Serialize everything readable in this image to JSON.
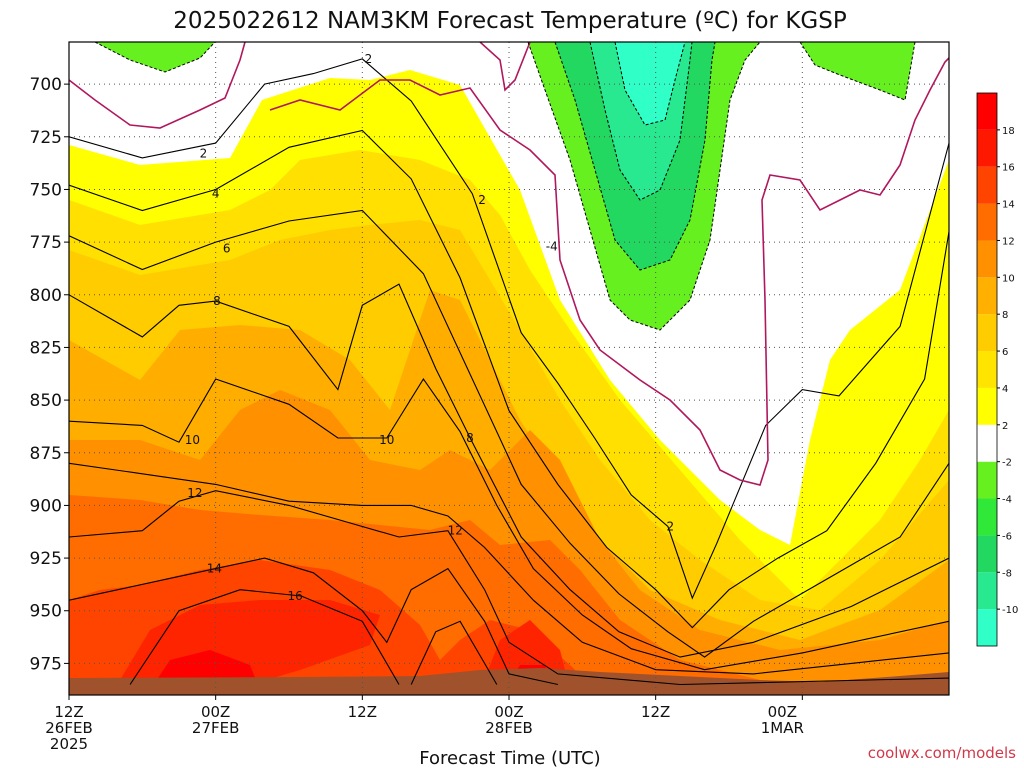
{
  "chart_data": {
    "type": "heatmap",
    "title": "2025022612 NAM3KM Forecast Temperature (ºC) for KGSP",
    "xlabel": "Forecast Time (UTC)",
    "ylabel": "",
    "credit": "coolwx.com/models",
    "x_hours": [
      0,
      72
    ],
    "x_ticks": [
      {
        "hour": 0,
        "lines": [
          "12Z",
          "26FEB",
          "2025"
        ]
      },
      {
        "hour": 12,
        "lines": [
          "00Z",
          "27FEB"
        ]
      },
      {
        "hour": 24,
        "lines": [
          "12Z"
        ]
      },
      {
        "hour": 36,
        "lines": [
          "00Z",
          "28FEB"
        ]
      },
      {
        "hour": 48,
        "lines": [
          "12Z"
        ]
      },
      {
        "hour": 60,
        "lines": [
          "00Z",
          "1MAR"
        ]
      }
    ],
    "y_ticks": [
      700,
      725,
      750,
      775,
      800,
      825,
      850,
      875,
      900,
      925,
      950,
      975
    ],
    "ylim": [
      680,
      990
    ],
    "grid": true,
    "colorbar": {
      "levels": [
        -10,
        -8,
        -6,
        -4,
        -2,
        2,
        4,
        6,
        8,
        10,
        12,
        14,
        16,
        18
      ],
      "labels": [
        "-10",
        "-8",
        "-6",
        "-4",
        "-2",
        "2",
        "4",
        "6",
        "8",
        "10",
        "12",
        "14",
        "16",
        "18"
      ],
      "colors": [
        "#30ffc8",
        "#28e890",
        "#22d860",
        "#30e838",
        "#66f020",
        "#ffffff",
        "#ffff00",
        "#ffe400",
        "#ffcc00",
        "#ffb000",
        "#ff9000",
        "#ff6c00",
        "#ff4400",
        "#ff1800",
        "#ff0000"
      ]
    },
    "contour_labels": [
      {
        "text": "2",
        "hour": 24.5,
        "p": 688
      },
      {
        "text": "2",
        "hour": 11,
        "p": 733
      },
      {
        "text": "2",
        "hour": 33.8,
        "p": 755
      },
      {
        "text": "2",
        "hour": 49.2,
        "p": 910
      },
      {
        "text": "4",
        "hour": 12,
        "p": 752
      },
      {
        "text": "6",
        "hour": 12.9,
        "p": 778
      },
      {
        "text": "8",
        "hour": 12.1,
        "p": 803
      },
      {
        "text": "8",
        "hour": 32.8,
        "p": 868
      },
      {
        "text": "10",
        "hour": 10.1,
        "p": 869
      },
      {
        "text": "10",
        "hour": 26,
        "p": 869
      },
      {
        "text": "12",
        "hour": 10.3,
        "p": 894
      },
      {
        "text": "12",
        "hour": 31.6,
        "p": 912
      },
      {
        "text": "14",
        "hour": 11.9,
        "p": 930
      },
      {
        "text": "16",
        "hour": 18.5,
        "p": 943
      },
      {
        "text": "-4",
        "hour": 39.5,
        "p": 777
      }
    ],
    "series": [
      {
        "values": [
          {
            "hour": 0,
            "p": 725
          },
          {
            "hour": 6,
            "p": 735
          },
          {
            "hour": 12,
            "p": 728
          },
          {
            "hour": 16,
            "p": 700
          },
          {
            "hour": 20,
            "p": 695
          },
          {
            "hour": 24,
            "p": 688
          },
          {
            "hour": 28,
            "p": 708
          },
          {
            "hour": 33,
            "p": 752
          },
          {
            "hour": 37,
            "p": 818
          },
          {
            "hour": 40,
            "p": 842
          },
          {
            "hour": 43,
            "p": 868
          },
          {
            "hour": 46,
            "p": 895
          },
          {
            "hour": 49,
            "p": 910
          },
          {
            "hour": 51,
            "p": 944
          },
          {
            "hour": 53,
            "p": 918
          },
          {
            "hour": 57,
            "p": 862
          },
          {
            "hour": 60,
            "p": 845
          },
          {
            "hour": 63,
            "p": 848
          },
          {
            "hour": 68,
            "p": 815
          },
          {
            "hour": 72,
            "p": 728
          }
        ]
      },
      {
        "values": [
          {
            "hour": 0,
            "p": 748
          },
          {
            "hour": 6,
            "p": 760
          },
          {
            "hour": 12,
            "p": 750
          },
          {
            "hour": 18,
            "p": 730
          },
          {
            "hour": 24,
            "p": 722
          },
          {
            "hour": 28,
            "p": 745
          },
          {
            "hour": 32,
            "p": 792
          },
          {
            "hour": 36,
            "p": 855
          },
          {
            "hour": 40,
            "p": 890
          },
          {
            "hour": 44,
            "p": 920
          },
          {
            "hour": 48,
            "p": 940
          },
          {
            "hour": 51,
            "p": 958
          },
          {
            "hour": 54,
            "p": 940
          },
          {
            "hour": 58,
            "p": 925
          },
          {
            "hour": 62,
            "p": 912
          },
          {
            "hour": 66,
            "p": 880
          },
          {
            "hour": 70,
            "p": 840
          },
          {
            "hour": 72,
            "p": 770
          }
        ]
      },
      {
        "values": [
          {
            "hour": 0,
            "p": 772
          },
          {
            "hour": 6,
            "p": 788
          },
          {
            "hour": 12,
            "p": 775
          },
          {
            "hour": 18,
            "p": 765
          },
          {
            "hour": 24,
            "p": 760
          },
          {
            "hour": 29,
            "p": 790
          },
          {
            "hour": 33,
            "p": 840
          },
          {
            "hour": 37,
            "p": 890
          },
          {
            "hour": 41,
            "p": 918
          },
          {
            "hour": 45,
            "p": 942
          },
          {
            "hour": 49,
            "p": 960
          },
          {
            "hour": 52,
            "p": 972
          },
          {
            "hour": 56,
            "p": 955
          },
          {
            "hour": 62,
            "p": 935
          },
          {
            "hour": 68,
            "p": 915
          },
          {
            "hour": 72,
            "p": 880
          }
        ]
      },
      {
        "values": [
          {
            "hour": 0,
            "p": 800
          },
          {
            "hour": 6,
            "p": 820
          },
          {
            "hour": 9,
            "p": 805
          },
          {
            "hour": 12,
            "p": 803
          },
          {
            "hour": 18,
            "p": 815
          },
          {
            "hour": 22,
            "p": 845
          },
          {
            "hour": 24,
            "p": 805
          },
          {
            "hour": 27,
            "p": 795
          },
          {
            "hour": 30,
            "p": 835
          },
          {
            "hour": 33,
            "p": 870
          },
          {
            "hour": 37,
            "p": 915
          },
          {
            "hour": 41,
            "p": 940
          },
          {
            "hour": 45,
            "p": 960
          },
          {
            "hour": 50,
            "p": 972
          },
          {
            "hour": 56,
            "p": 965
          },
          {
            "hour": 64,
            "p": 948
          },
          {
            "hour": 72,
            "p": 925
          }
        ]
      },
      {
        "values": [
          {
            "hour": 0,
            "p": 860
          },
          {
            "hour": 6,
            "p": 862
          },
          {
            "hour": 9,
            "p": 870
          },
          {
            "hour": 12,
            "p": 840
          },
          {
            "hour": 18,
            "p": 852
          },
          {
            "hour": 22,
            "p": 868
          },
          {
            "hour": 26,
            "p": 868
          },
          {
            "hour": 29,
            "p": 840
          },
          {
            "hour": 32,
            "p": 865
          },
          {
            "hour": 35,
            "p": 900
          },
          {
            "hour": 38,
            "p": 930
          },
          {
            "hour": 42,
            "p": 952
          },
          {
            "hour": 46,
            "p": 968
          },
          {
            "hour": 52,
            "p": 978
          },
          {
            "hour": 60,
            "p": 970
          },
          {
            "hour": 72,
            "p": 955
          }
        ]
      },
      {
        "values": [
          {
            "hour": 0,
            "p": 880
          },
          {
            "hour": 6,
            "p": 885
          },
          {
            "hour": 12,
            "p": 890
          },
          {
            "hour": 18,
            "p": 898
          },
          {
            "hour": 24,
            "p": 900
          },
          {
            "hour": 28,
            "p": 900
          },
          {
            "hour": 31,
            "p": 905
          },
          {
            "hour": 34,
            "p": 920
          },
          {
            "hour": 38,
            "p": 945
          },
          {
            "hour": 42,
            "p": 965
          },
          {
            "hour": 48,
            "p": 978
          },
          {
            "hour": 56,
            "p": 980
          },
          {
            "hour": 64,
            "p": 975
          },
          {
            "hour": 72,
            "p": 970
          }
        ]
      },
      {
        "values": [
          {
            "hour": 0,
            "p": 915
          },
          {
            "hour": 6,
            "p": 912
          },
          {
            "hour": 9,
            "p": 898
          },
          {
            "hour": 12,
            "p": 893
          },
          {
            "hour": 18,
            "p": 900
          },
          {
            "hour": 24,
            "p": 910
          },
          {
            "hour": 27,
            "p": 915
          },
          {
            "hour": 31,
            "p": 912
          },
          {
            "hour": 34,
            "p": 940
          },
          {
            "hour": 36,
            "p": 965
          },
          {
            "hour": 40,
            "p": 980
          },
          {
            "hour": 50,
            "p": 985
          },
          {
            "hour": 72,
            "p": 982
          }
        ]
      },
      {
        "values": [
          {
            "hour": 0,
            "p": 945
          },
          {
            "hour": 4,
            "p": 940
          },
          {
            "hour": 8,
            "p": 935
          },
          {
            "hour": 12,
            "p": 930
          },
          {
            "hour": 16,
            "p": 925
          },
          {
            "hour": 20,
            "p": 932
          },
          {
            "hour": 24,
            "p": 950
          },
          {
            "hour": 26,
            "p": 965
          },
          {
            "hour": 28,
            "p": 940
          },
          {
            "hour": 31,
            "p": 930
          },
          {
            "hour": 34,
            "p": 955
          },
          {
            "hour": 36,
            "p": 980
          },
          {
            "hour": 40,
            "p": 985
          }
        ]
      },
      {
        "values": [
          {
            "hour": 5,
            "p": 985
          },
          {
            "hour": 9,
            "p": 950
          },
          {
            "hour": 14,
            "p": 940
          },
          {
            "hour": 19,
            "p": 943
          },
          {
            "hour": 24,
            "p": 955
          },
          {
            "hour": 27,
            "p": 985
          }
        ]
      },
      {
        "values": [
          {
            "hour": 28,
            "p": 985
          },
          {
            "hour": 30,
            "p": 960
          },
          {
            "hour": 32,
            "p": 955
          },
          {
            "hour": 34,
            "p": 975
          },
          {
            "hour": 35,
            "p": 985
          }
        ]
      }
    ]
  }
}
